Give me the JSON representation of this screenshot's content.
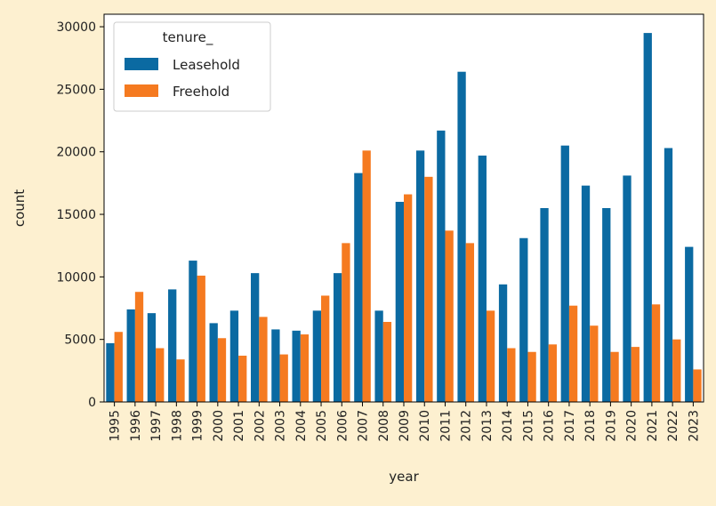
{
  "chart_data": {
    "type": "bar",
    "title": "",
    "xlabel": "year",
    "ylabel": "count",
    "ylim": [
      0,
      31000
    ],
    "yticks": [
      0,
      5000,
      10000,
      15000,
      20000,
      25000,
      30000
    ],
    "grid": false,
    "legend": {
      "title": "tenure_",
      "placement": "top-left"
    },
    "categories": [
      "1995",
      "1996",
      "1997",
      "1998",
      "1999",
      "2000",
      "2001",
      "2002",
      "2003",
      "2004",
      "2005",
      "2006",
      "2007",
      "2008",
      "2009",
      "2010",
      "2011",
      "2012",
      "2013",
      "2014",
      "2015",
      "2016",
      "2017",
      "2018",
      "2019",
      "2020",
      "2021",
      "2022",
      "2023"
    ],
    "series": [
      {
        "name": "Leasehold",
        "color": "#0b6aa2",
        "values": [
          4700,
          7400,
          7100,
          9000,
          11300,
          6300,
          7300,
          10300,
          5800,
          5700,
          7300,
          10300,
          18300,
          7300,
          16000,
          20100,
          21700,
          26400,
          19700,
          9400,
          13100,
          15500,
          20500,
          17300,
          15500,
          18100,
          29500,
          20300,
          12400
        ]
      },
      {
        "name": "Freehold",
        "color": "#f57a20",
        "values": [
          5600,
          8800,
          4300,
          3400,
          10100,
          5100,
          3700,
          6800,
          3800,
          5400,
          8500,
          12700,
          20100,
          6400,
          16600,
          18000,
          13700,
          12700,
          7300,
          4300,
          4000,
          4600,
          7700,
          6100,
          4000,
          4400,
          7800,
          5000,
          2600
        ]
      }
    ]
  }
}
